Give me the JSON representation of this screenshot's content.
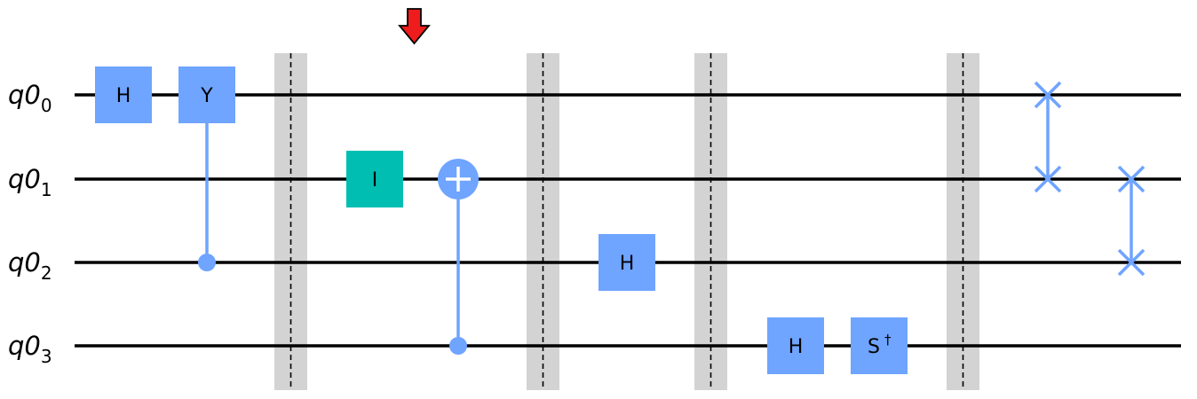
{
  "circuit": {
    "qubits": [
      {
        "label": "q0",
        "index": "0"
      },
      {
        "label": "q0",
        "index": "1"
      },
      {
        "label": "q0",
        "index": "2"
      },
      {
        "label": "q0",
        "index": "3"
      }
    ],
    "gates": {
      "h_q0": "H",
      "y_q0": "Y",
      "i_q1": "I",
      "h_q2": "H",
      "h_q3": "H",
      "sdg_q3": "S"
    },
    "colors": {
      "gate": "#6fa4ff",
      "identity_gate": "#00bfb2",
      "barrier": "#d3d3d3",
      "arrow": "#ee1c1c",
      "wire": "#000000"
    }
  }
}
